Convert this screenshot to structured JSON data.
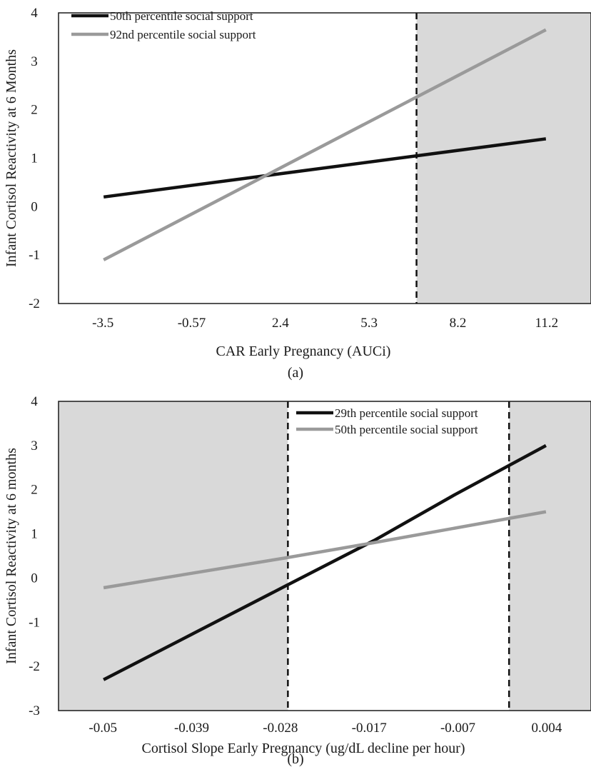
{
  "chart_data": [
    {
      "type": "line",
      "caption": "(a)",
      "xlabel": "CAR Early Pregnancy (AUCi)",
      "ylabel": "Infant Cortisol Reactivity at 6 Months",
      "x_tick_labels": [
        "-3.5",
        "-0.57",
        "2.4",
        "5.3",
        "8.2",
        "11.2"
      ],
      "y_ticks": [
        -2,
        -1,
        0,
        1,
        2,
        3,
        4
      ],
      "ylim": [
        -2,
        4
      ],
      "xlim": [
        -5,
        12.7
      ],
      "grid": false,
      "legend_position": "top-left",
      "shaded_regions": [
        [
          6.9,
          12.7
        ]
      ],
      "vertical_lines": [
        6.9
      ],
      "series": [
        {
          "name": "50th percentile social support",
          "color": "#111111",
          "x": [
            -3.5,
            11.2
          ],
          "y": [
            0.2,
            1.4
          ]
        },
        {
          "name": "92nd percentile social support",
          "color": "#9a9a9a",
          "x": [
            -3.5,
            11.2
          ],
          "y": [
            -1.1,
            3.65
          ]
        }
      ]
    },
    {
      "type": "line",
      "caption": "(b)",
      "xlabel": "Cortisol Slope Early Pregnancy (ug/dL decline per hour)",
      "ylabel": "Infant Cortisol Reactivity at 6 months",
      "x_tick_labels": [
        "-0.05",
        "-0.039",
        "-0.028",
        "-0.017",
        "-0.007",
        "0.004"
      ],
      "y_ticks": [
        -3,
        -2,
        -1,
        0,
        1,
        2,
        3,
        4
      ],
      "ylim": [
        -3,
        4
      ],
      "xlim": [
        -0.0555,
        0.0095
      ],
      "grid": false,
      "legend_position": "top-right",
      "shaded_regions": [
        [
          -0.0555,
          -0.0275
        ],
        [
          -0.0005,
          0.0095
        ]
      ],
      "vertical_lines": [
        -0.0275,
        -0.0005
      ],
      "series": [
        {
          "name": "29th percentile social support",
          "color": "#111111",
          "x": [
            -0.05,
            -0.039,
            -0.028,
            -0.017,
            -0.007,
            0.004
          ],
          "y": [
            -2.3,
            -1.25,
            -0.2,
            0.85,
            1.9,
            3.0
          ]
        },
        {
          "name": "50th percentile social support",
          "color": "#9a9a9a",
          "x": [
            -0.05,
            -0.028,
            -0.017,
            0.004
          ],
          "y": [
            -0.22,
            0.45,
            0.8,
            1.5
          ]
        }
      ]
    }
  ]
}
